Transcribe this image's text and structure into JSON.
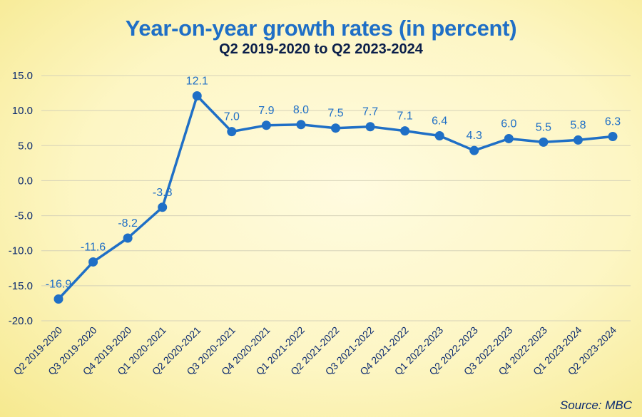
{
  "chart_data": {
    "type": "line",
    "title": "Year-on-year growth rates (in percent)",
    "subtitle": "Q2 2019-2020 to Q2 2023-2024",
    "source": "Source: MBC",
    "categories": [
      "Q2 2019-2020",
      "Q3 2019-2020",
      "Q4 2019-2020",
      "Q1 2020-2021",
      "Q2 2020-2021",
      "Q3 2020-2021",
      "Q4 2020-2021",
      "Q1 2021-2022",
      "Q2 2021-2022",
      "Q3 2021-2022",
      "Q4 2021-2022",
      "Q1 2022-2023",
      "Q2 2022-2023",
      "Q3 2022-2023",
      "Q4 2022-2023",
      "Q1 2023-2024",
      "Q2 2023-2024"
    ],
    "values": [
      -16.9,
      -11.6,
      -8.2,
      -3.8,
      12.1,
      7.0,
      7.9,
      8.0,
      7.5,
      7.7,
      7.1,
      6.4,
      4.3,
      6.0,
      5.5,
      5.8,
      6.3
    ],
    "value_labels": [
      "-16.9",
      "-11.6",
      "-8.2",
      "-3.8",
      "12.1",
      "7.0",
      "7.9",
      "8.0",
      "7.5",
      "7.7",
      "7.1",
      "6.4",
      "4.3",
      "6.0",
      "5.5",
      "5.8",
      "6.3"
    ],
    "yticks": [
      "15.0",
      "10.0",
      "5.0",
      "0.0",
      "-5.0",
      "-10.0",
      "-15.0",
      "-20.0"
    ],
    "ylim": [
      -20,
      15
    ],
    "grid": true,
    "line_color": "#1f6fc6",
    "label_color": "#1f6fc6",
    "axis_text_color": "#0b2a6f",
    "grid_color": "#d6d2b8"
  }
}
